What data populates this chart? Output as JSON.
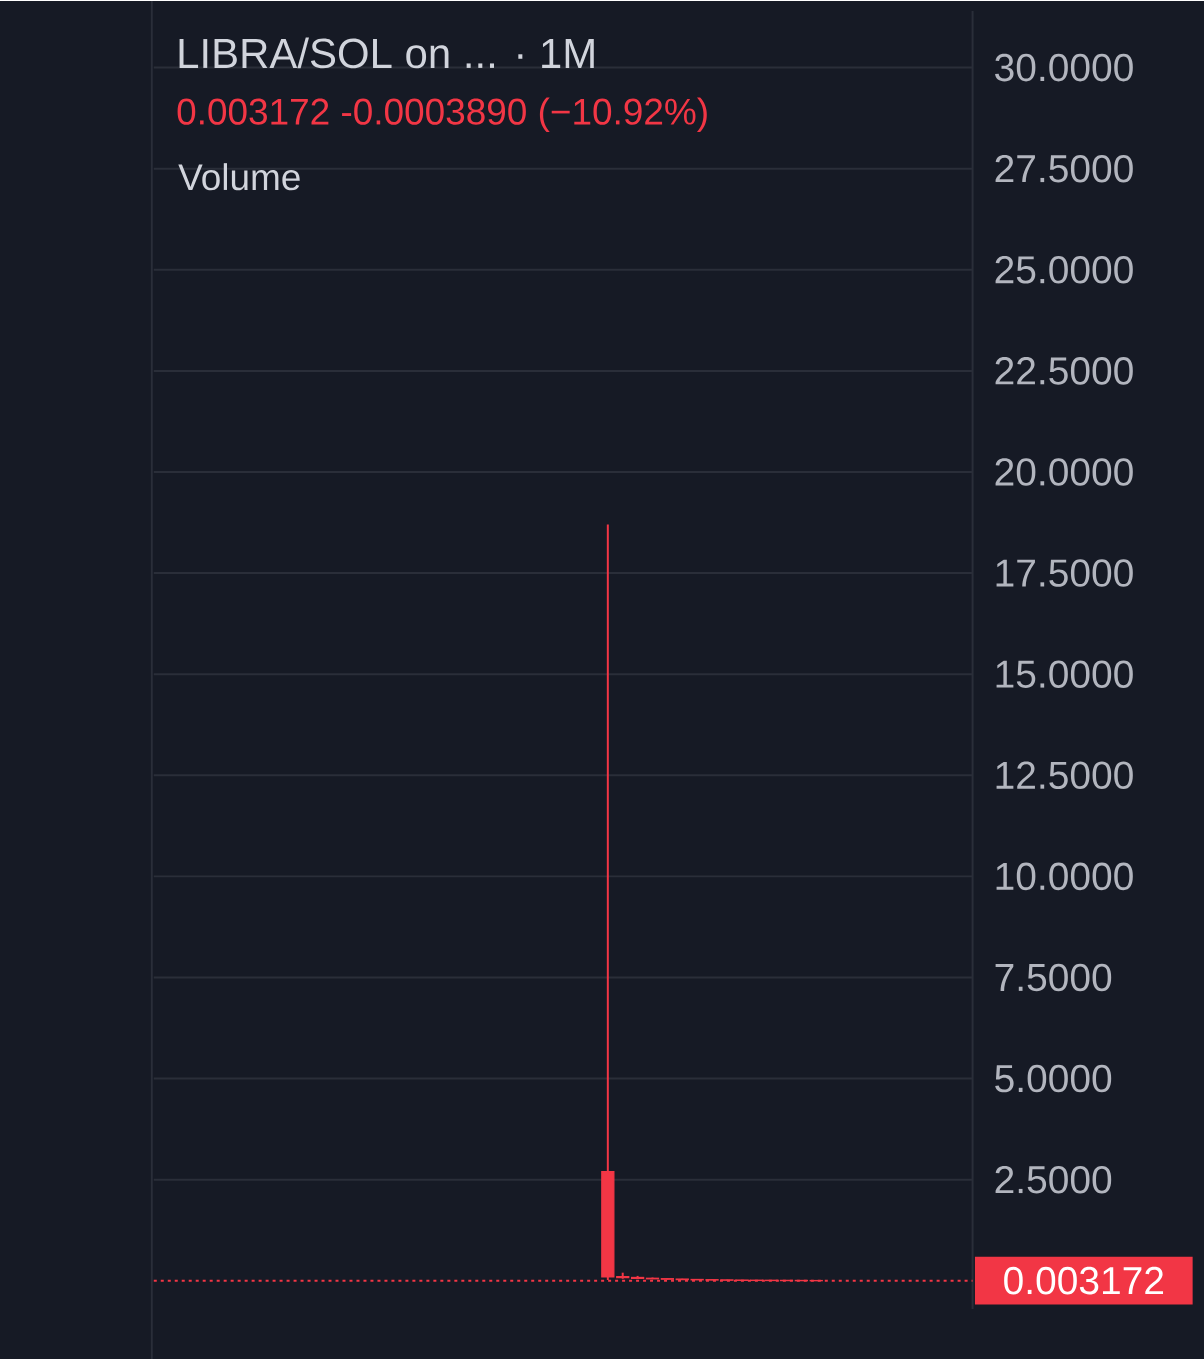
{
  "chart_data": {
    "type": "candlestick",
    "title": "LIBRA/SOL on ... · 1M",
    "subtitle": "0.003172 -0.0003890 (−10.92%)",
    "annotations": [
      "Volume"
    ],
    "categories": [
      null,
      null,
      null,
      null,
      null,
      null,
      null,
      null,
      null,
      null,
      null,
      null,
      null,
      null,
      null,
      null,
      null,
      null,
      null,
      null,
      null,
      null,
      null,
      null,
      null,
      null,
      null,
      null,
      null,
      null,
      null,
      null,
      null,
      null,
      null,
      null,
      null,
      null,
      null,
      null,
      null,
      null,
      null,
      null,
      null,
      null,
      null,
      null,
      null,
      null,
      null,
      null,
      null,
      null,
      null
    ],
    "ohlc": [
      null,
      null,
      null,
      null,
      null,
      null,
      null,
      null,
      null,
      null,
      null,
      null,
      null,
      null,
      null,
      null,
      null,
      null,
      null,
      null,
      null,
      null,
      null,
      null,
      null,
      null,
      null,
      null,
      null,
      null,
      [
        2.7,
        18.7,
        0.02,
        0.1
      ],
      [
        0.1,
        0.2,
        0.05,
        0.08
      ],
      [
        0.08,
        0.12,
        0.05,
        0.06
      ],
      [
        0.06,
        0.08,
        0.04,
        0.05
      ],
      [
        0.05,
        0.06,
        0.03,
        0.04
      ],
      [
        0.04,
        0.05,
        0.02,
        0.03
      ],
      [
        0.03,
        0.04,
        0.02,
        0.025
      ],
      [
        0.025,
        0.03,
        0.015,
        0.02
      ],
      [
        0.02,
        0.025,
        0.01,
        0.015
      ],
      [
        0.015,
        0.02,
        0.01,
        0.012
      ],
      [
        0.012,
        0.015,
        0.008,
        0.01
      ],
      [
        0.01,
        0.012,
        0.006,
        0.008
      ],
      [
        0.008,
        0.01,
        0.005,
        0.006
      ],
      [
        0.006,
        0.007,
        0.003,
        0.0036
      ],
      [
        0.0036,
        0.004,
        0.003,
        0.003172
      ],
      null,
      null,
      null,
      null,
      null,
      null,
      null,
      null,
      null,
      null
    ],
    "color": "#f23645",
    "ylim": [
      -0.7,
      31.4
    ],
    "yticks": [
      {
        "value": 2.5,
        "label": "2.5000"
      },
      {
        "value": 5,
        "label": "5.0000"
      },
      {
        "value": 7.5,
        "label": "7.5000"
      },
      {
        "value": 10,
        "label": "10.0000"
      },
      {
        "value": 12.5,
        "label": "12.5000"
      },
      {
        "value": 15,
        "label": "15.0000"
      },
      {
        "value": 17.5,
        "label": "17.5000"
      },
      {
        "value": 20,
        "label": "20.0000"
      },
      {
        "value": 22.5,
        "label": "22.5000"
      },
      {
        "value": 25,
        "label": "25.0000"
      },
      {
        "value": 27.5,
        "label": "27.5000"
      },
      {
        "value": 30,
        "label": "30.0000"
      }
    ],
    "tick_labels": "y",
    "grid": "y",
    "ref_lines": [
      {
        "axis": "y",
        "value": 0.003172,
        "label": "0.003172",
        "color": "#f23645",
        "line_style": "dotted"
      }
    ]
  }
}
